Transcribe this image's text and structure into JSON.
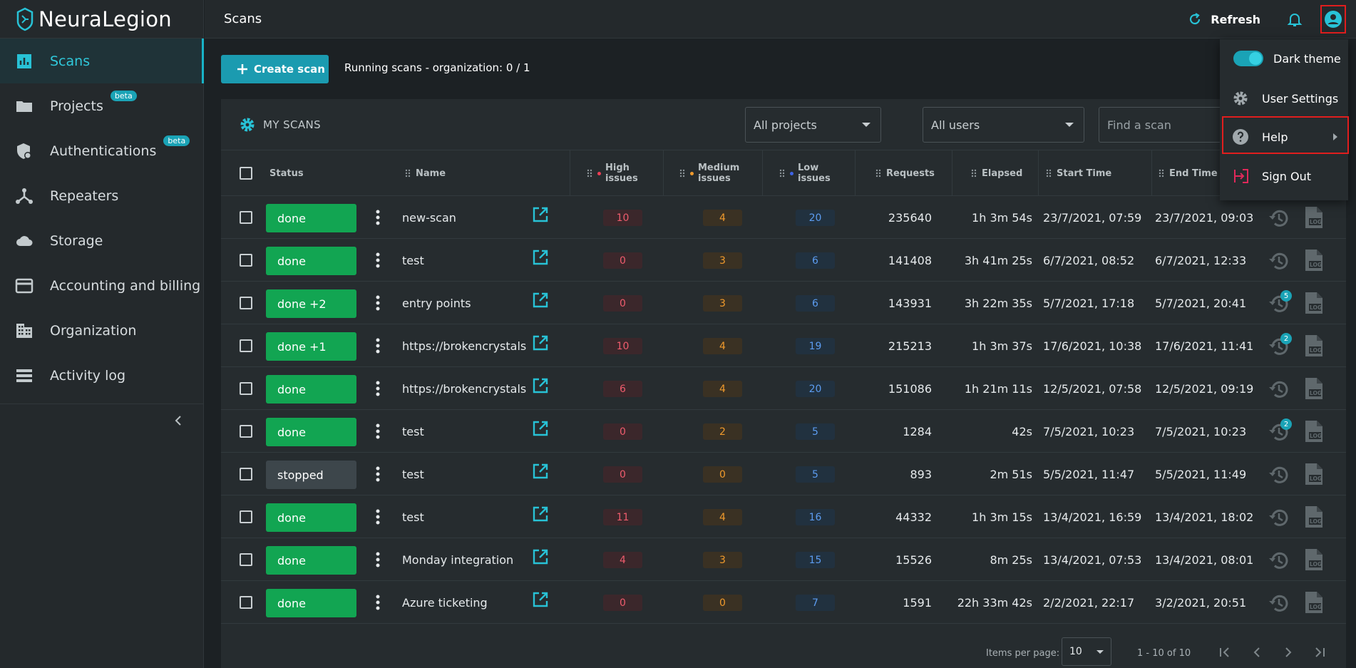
{
  "app": {
    "logo_text": "NeuraLegion",
    "page_title": "Scans"
  },
  "sidebar": {
    "items": [
      {
        "label": "Scans",
        "icon": "bar-chart-icon",
        "active": true,
        "beta": false
      },
      {
        "label": "Projects",
        "icon": "folder-icon",
        "beta": true
      },
      {
        "label": "Authentications",
        "icon": "shield-icon",
        "beta": true
      },
      {
        "label": "Repeaters",
        "icon": "hub-icon",
        "beta": false
      },
      {
        "label": "Storage",
        "icon": "cloud-icon",
        "beta": false
      },
      {
        "label": "Accounting and billing",
        "icon": "credit-card-icon",
        "beta": false
      },
      {
        "label": "Organization",
        "icon": "building-icon",
        "beta": false
      },
      {
        "label": "Activity log",
        "icon": "list-icon",
        "beta": false
      }
    ],
    "beta_label": "beta"
  },
  "topbar": {
    "refresh_label": "Refresh"
  },
  "toolbar": {
    "create_label": "Create scan",
    "running_text": "Running scans - organization: 0 / 1"
  },
  "panel": {
    "title": "MY SCANS",
    "projects_select": "All projects",
    "users_select": "All users",
    "search_placeholder": "Find a scan"
  },
  "columns": {
    "status": "Status",
    "name": "Name",
    "high": "High issues",
    "medium": "Medium issues",
    "low": "Low issues",
    "requests": "Requests",
    "elapsed": "Elapsed",
    "start": "Start Time",
    "end": "End Time"
  },
  "rows": [
    {
      "status": "done",
      "type": "done",
      "name": "new-scan",
      "high": "10",
      "medium": "4",
      "low": "20",
      "requests": "235640",
      "elapsed": "1h 3m 54s",
      "start": "23/7/2021, 07:59",
      "end": "23/7/2021, 09:03",
      "history_count": ""
    },
    {
      "status": "done",
      "type": "done",
      "name": "test",
      "high": "0",
      "medium": "3",
      "low": "6",
      "requests": "141408",
      "elapsed": "3h 41m 25s",
      "start": "6/7/2021, 08:52",
      "end": "6/7/2021, 12:33",
      "history_count": ""
    },
    {
      "status": "done +2",
      "type": "done",
      "name": "entry points",
      "high": "0",
      "medium": "3",
      "low": "6",
      "requests": "143931",
      "elapsed": "3h 22m 35s",
      "start": "5/7/2021, 17:18",
      "end": "5/7/2021, 20:41",
      "history_count": "5"
    },
    {
      "status": "done +1",
      "type": "done",
      "name": "https://brokencrystals.com",
      "high": "10",
      "medium": "4",
      "low": "19",
      "requests": "215213",
      "elapsed": "1h 3m 37s",
      "start": "17/6/2021, 10:38",
      "end": "17/6/2021, 11:41",
      "history_count": "2"
    },
    {
      "status": "done",
      "type": "done",
      "name": "https://brokencrystals.com",
      "high": "6",
      "medium": "4",
      "low": "20",
      "requests": "151086",
      "elapsed": "1h 21m 11s",
      "start": "12/5/2021, 07:58",
      "end": "12/5/2021, 09:19",
      "history_count": ""
    },
    {
      "status": "done",
      "type": "done",
      "name": "test",
      "high": "0",
      "medium": "2",
      "low": "5",
      "requests": "1284",
      "elapsed": "42s",
      "start": "7/5/2021, 10:23",
      "end": "7/5/2021, 10:23",
      "history_count": "2"
    },
    {
      "status": "stopped",
      "type": "stopped",
      "name": "test",
      "high": "0",
      "medium": "0",
      "low": "5",
      "requests": "893",
      "elapsed": "2m 51s",
      "start": "5/5/2021, 11:47",
      "end": "5/5/2021, 11:49",
      "history_count": ""
    },
    {
      "status": "done",
      "type": "done",
      "name": "test",
      "high": "11",
      "medium": "4",
      "low": "16",
      "requests": "44332",
      "elapsed": "1h 3m 15s",
      "start": "13/4/2021, 16:59",
      "end": "13/4/2021, 18:02",
      "history_count": ""
    },
    {
      "status": "done",
      "type": "done",
      "name": "Monday integration",
      "high": "4",
      "medium": "3",
      "low": "15",
      "requests": "15526",
      "elapsed": "8m 25s",
      "start": "13/4/2021, 07:53",
      "end": "13/4/2021, 08:01",
      "history_count": ""
    },
    {
      "status": "done",
      "type": "done",
      "name": "Azure ticketing",
      "high": "0",
      "medium": "0",
      "low": "7",
      "requests": "1591",
      "elapsed": "22h 33m 42s",
      "start": "2/2/2021, 22:17",
      "end": "3/2/2021, 20:51",
      "history_count": ""
    }
  ],
  "pager": {
    "items_per_page_label": "Items per page:",
    "items_per_page": "10",
    "range": "1 - 10 of 10"
  },
  "user_menu": {
    "dark_theme": "Dark theme",
    "user_settings": "User Settings",
    "help": "Help",
    "sign_out": "Sign Out"
  },
  "colors": {
    "accent": "#1aa3b6",
    "done": "#12a552",
    "stopped": "#3d464b",
    "high": "#ef5c6d",
    "medium": "#f09a2c",
    "low": "#5c9cf0",
    "highlight": "#e01e1e"
  }
}
